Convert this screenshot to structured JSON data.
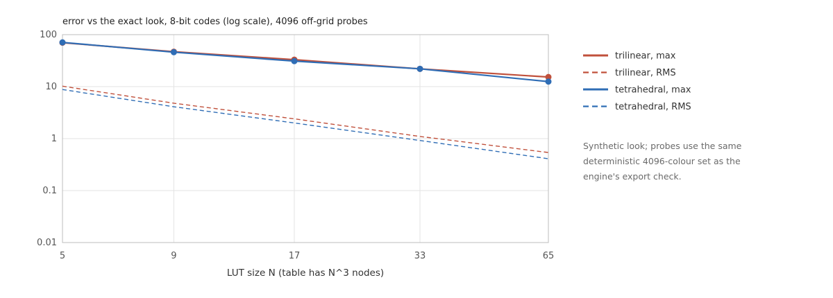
{
  "chart_data": {
    "type": "line",
    "title": "error vs the exact look, 8-bit codes (log scale), 4096 off-grid probes",
    "xlabel": "LUT size N (table has N^3 nodes)",
    "ylabel": "",
    "x": [
      5,
      9,
      17,
      33,
      65
    ],
    "x_scale": "log",
    "x_ticks": [
      "5",
      "9",
      "17",
      "33",
      "65"
    ],
    "y_scale": "log",
    "ylim": [
      0.01,
      100
    ],
    "y_ticks": [
      "100",
      "10",
      "1",
      "0.1",
      "0.01"
    ],
    "grid": true,
    "legend_position": "right",
    "series": [
      {
        "name": "trilinear, max",
        "values": [
          70,
          47,
          33,
          22,
          15.3
        ],
        "color": "#c0503b",
        "dash": "solid",
        "markers": true
      },
      {
        "name": "trilinear, RMS",
        "values": [
          10.2,
          4.8,
          2.4,
          1.1,
          0.54
        ],
        "color": "#c0503b",
        "dash": "dashed",
        "markers": false
      },
      {
        "name": "tetrahedral, max",
        "values": [
          71,
          46,
          31,
          22,
          12.5
        ],
        "color": "#2f6db5",
        "dash": "solid",
        "markers": true
      },
      {
        "name": "tetrahedral, RMS",
        "values": [
          8.8,
          4.1,
          2.0,
          0.92,
          0.41
        ],
        "color": "#2f6db5",
        "dash": "dashed",
        "markers": false
      }
    ]
  },
  "note": "Synthetic look; probes use the same deterministic 4096-colour set as the engine's export check."
}
